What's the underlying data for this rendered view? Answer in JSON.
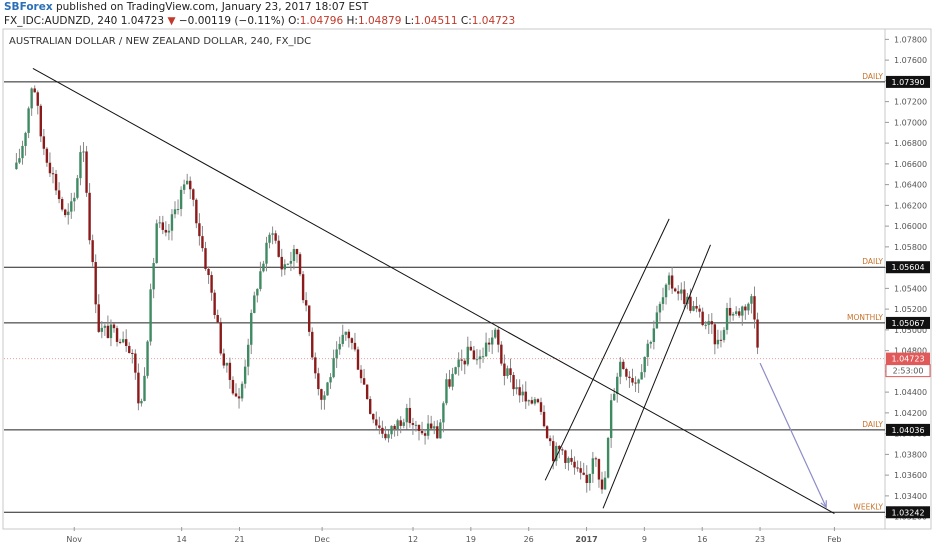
{
  "header": {
    "author": "SBForex",
    "published": "published on TradingView.com, January 23, 2017 18:07 EST",
    "symbol": "FX_IDC:AUDNZD, 240",
    "price": "1.04723",
    "arrow": "▼",
    "change": "−0.00119 (−0.11%)",
    "o_label": "O:",
    "o_val": "1.04796",
    "h_label": "H:",
    "h_val": "1.04879",
    "l_label": "L:",
    "l_val": "1.04511",
    "c_label": "C:",
    "c_val": "1.04723"
  },
  "chart_data": {
    "type": "candlestick",
    "title": "AUSTRALIAN DOLLAR / NEW ZEALAND DOLLAR, 240, FX_IDC",
    "ylim": [
      1.031,
      1.079
    ],
    "y_ticks": [
      "1.07800",
      "1.07600",
      "1.07400",
      "1.07200",
      "1.07000",
      "1.06800",
      "1.06600",
      "1.06400",
      "1.06200",
      "1.06000",
      "1.05800",
      "1.05600",
      "1.05400",
      "1.05200",
      "1.05000",
      "1.04800",
      "1.04600",
      "1.04400",
      "1.04200",
      "1.04000",
      "1.03800",
      "1.03600",
      "1.03400",
      "1.03200"
    ],
    "x_ticks": [
      {
        "label": "Nov",
        "date": "2016-11-01",
        "bold": false
      },
      {
        "label": "14",
        "date": "2016-11-14",
        "bold": false
      },
      {
        "label": "21",
        "date": "2016-11-21",
        "bold": false
      },
      {
        "label": "Dec",
        "date": "2016-12-01",
        "bold": false
      },
      {
        "label": "12",
        "date": "2016-12-12",
        "bold": false
      },
      {
        "label": "19",
        "date": "2016-12-19",
        "bold": false
      },
      {
        "label": "26",
        "date": "2016-12-26",
        "bold": false
      },
      {
        "label": "2017",
        "date": "2017-01-02",
        "bold": true
      },
      {
        "label": "9",
        "date": "2017-01-09",
        "bold": false
      },
      {
        "label": "16",
        "date": "2017-01-16",
        "bold": false
      },
      {
        "label": "23",
        "date": "2017-01-23",
        "bold": false
      },
      {
        "label": "Feb",
        "date": "2017-02-01",
        "bold": false
      }
    ],
    "levels": [
      {
        "name": "DAILY",
        "value": 1.0739,
        "label": "1.07390"
      },
      {
        "name": "DAILY",
        "value": 1.05604,
        "label": "1.05604"
      },
      {
        "name": "MONTHLY",
        "value": 1.05067,
        "label": "1.05067"
      },
      {
        "name": "DAILY",
        "value": 1.04036,
        "label": "1.04036"
      },
      {
        "name": "WEEKLY",
        "value": 1.03242,
        "label": "1.03242"
      }
    ],
    "last_price": {
      "value": 1.04723,
      "label": "1.04723",
      "countdown": "2:53:00"
    },
    "trendlines": [
      {
        "kind": "descending",
        "from": {
          "date": "2016-10-27",
          "price": 1.0752
        },
        "to": {
          "date": "2017-02-01",
          "price": 1.0323
        }
      },
      {
        "kind": "channel-lower",
        "from": {
          "date": "2017-01-04",
          "price": 1.0328
        },
        "to": {
          "date": "2017-01-17",
          "price": 1.0582
        }
      },
      {
        "kind": "channel-upper",
        "from": {
          "date": "2016-12-28",
          "price": 1.0355
        },
        "to": {
          "date": "2017-01-12",
          "price": 1.0607
        }
      }
    ],
    "projection": {
      "from": {
        "date": "2017-01-23",
        "price": 1.0468
      },
      "to": {
        "date": "2017-01-31",
        "price": 1.0329
      }
    },
    "price_path": [
      {
        "date": "2016-10-25",
        "price": 1.0655
      },
      {
        "date": "2016-10-26",
        "price": 1.0688
      },
      {
        "date": "2016-10-27",
        "price": 1.0745
      },
      {
        "date": "2016-10-28",
        "price": 1.0685
      },
      {
        "date": "2016-10-29",
        "price": 1.066
      },
      {
        "date": "2016-10-31",
        "price": 1.0605
      },
      {
        "date": "2016-11-01",
        "price": 1.0625
      },
      {
        "date": "2016-11-02",
        "price": 1.069
      },
      {
        "date": "2016-11-03",
        "price": 1.0578
      },
      {
        "date": "2016-11-04",
        "price": 1.05
      },
      {
        "date": "2016-11-07",
        "price": 1.0495
      },
      {
        "date": "2016-11-08",
        "price": 1.048
      },
      {
        "date": "2016-11-09",
        "price": 1.0418
      },
      {
        "date": "2016-11-10",
        "price": 1.0508
      },
      {
        "date": "2016-11-11",
        "price": 1.0605
      },
      {
        "date": "2016-11-12",
        "price": 1.0585
      },
      {
        "date": "2016-11-14",
        "price": 1.0635
      },
      {
        "date": "2016-11-15",
        "price": 1.064
      },
      {
        "date": "2016-11-16",
        "price": 1.06
      },
      {
        "date": "2016-11-17",
        "price": 1.056
      },
      {
        "date": "2016-11-18",
        "price": 1.052
      },
      {
        "date": "2016-11-19",
        "price": 1.047
      },
      {
        "date": "2016-11-21",
        "price": 1.043
      },
      {
        "date": "2016-11-22",
        "price": 1.0488
      },
      {
        "date": "2016-11-23",
        "price": 1.054
      },
      {
        "date": "2016-11-24",
        "price": 1.057
      },
      {
        "date": "2016-11-25",
        "price": 1.06
      },
      {
        "date": "2016-11-26",
        "price": 1.056
      },
      {
        "date": "2016-11-28",
        "price": 1.0575
      },
      {
        "date": "2016-11-29",
        "price": 1.052
      },
      {
        "date": "2016-11-30",
        "price": 1.047
      },
      {
        "date": "2016-12-01",
        "price": 1.043
      },
      {
        "date": "2016-12-02",
        "price": 1.0458
      },
      {
        "date": "2016-12-04",
        "price": 1.05
      },
      {
        "date": "2016-12-05",
        "price": 1.0478
      },
      {
        "date": "2016-12-06",
        "price": 1.045
      },
      {
        "date": "2016-12-07",
        "price": 1.042
      },
      {
        "date": "2016-12-08",
        "price": 1.0405
      },
      {
        "date": "2016-12-09",
        "price": 1.0398
      },
      {
        "date": "2016-12-11",
        "price": 1.042
      },
      {
        "date": "2016-12-12",
        "price": 1.041
      },
      {
        "date": "2016-12-13",
        "price": 1.0395
      },
      {
        "date": "2016-12-14",
        "price": 1.041
      },
      {
        "date": "2016-12-15",
        "price": 1.0398
      },
      {
        "date": "2016-12-16",
        "price": 1.0445
      },
      {
        "date": "2016-12-18",
        "price": 1.047
      },
      {
        "date": "2016-12-19",
        "price": 1.048
      },
      {
        "date": "2016-12-20",
        "price": 1.047
      },
      {
        "date": "2016-12-21",
        "price": 1.0488
      },
      {
        "date": "2016-12-22",
        "price": 1.0495
      },
      {
        "date": "2016-12-23",
        "price": 1.046
      },
      {
        "date": "2016-12-25",
        "price": 1.044
      },
      {
        "date": "2016-12-26",
        "price": 1.0425
      },
      {
        "date": "2016-12-27",
        "price": 1.044
      },
      {
        "date": "2016-12-28",
        "price": 1.041
      },
      {
        "date": "2016-12-29",
        "price": 1.038
      },
      {
        "date": "2016-12-30",
        "price": 1.0385
      },
      {
        "date": "2017-01-01",
        "price": 1.036
      },
      {
        "date": "2017-01-02",
        "price": 1.035
      },
      {
        "date": "2017-01-03",
        "price": 1.039
      },
      {
        "date": "2017-01-04",
        "price": 1.0335
      },
      {
        "date": "2017-01-05",
        "price": 1.043
      },
      {
        "date": "2017-01-06",
        "price": 1.047
      },
      {
        "date": "2017-01-08",
        "price": 1.045
      },
      {
        "date": "2017-01-09",
        "price": 1.0475
      },
      {
        "date": "2017-01-10",
        "price": 1.05
      },
      {
        "date": "2017-01-11",
        "price": 1.0525
      },
      {
        "date": "2017-01-12",
        "price": 1.0545
      },
      {
        "date": "2017-01-13",
        "price": 1.054
      },
      {
        "date": "2017-01-15",
        "price": 1.052
      },
      {
        "date": "2017-01-16",
        "price": 1.051
      },
      {
        "date": "2017-01-17",
        "price": 1.05
      },
      {
        "date": "2017-01-18",
        "price": 1.0485
      },
      {
        "date": "2017-01-19",
        "price": 1.052
      },
      {
        "date": "2017-01-20",
        "price": 1.0515
      },
      {
        "date": "2017-01-22",
        "price": 1.053
      },
      {
        "date": "2017-01-23",
        "price": 1.04723
      }
    ]
  }
}
